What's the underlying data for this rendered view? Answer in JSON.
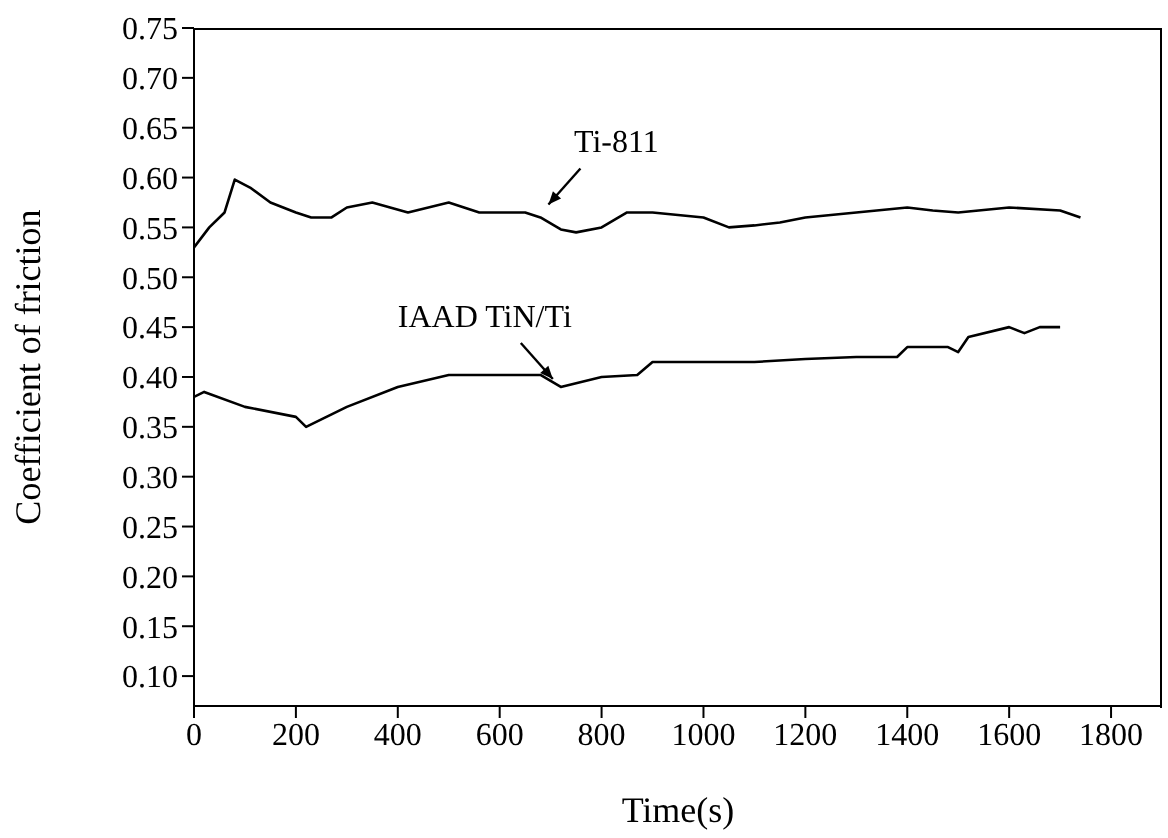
{
  "chart_data": {
    "type": "line",
    "xlabel": "Time(s)",
    "ylabel": "Coefficient of friction",
    "xlim": [
      0,
      1900
    ],
    "xticks": [
      0,
      200,
      400,
      600,
      800,
      1000,
      1200,
      1400,
      1600,
      1800
    ],
    "ylim": [
      0.07,
      0.75
    ],
    "yticks": [
      {
        "value": 0.1,
        "label": "0.10"
      },
      {
        "value": 0.15,
        "label": "0.15"
      },
      {
        "value": 0.2,
        "label": "0.20"
      },
      {
        "value": 0.25,
        "label": "0.25"
      },
      {
        "value": 0.3,
        "label": "0.30"
      },
      {
        "value": 0.35,
        "label": "0.35"
      },
      {
        "value": 0.4,
        "label": "0.40"
      },
      {
        "value": 0.45,
        "label": "0.45"
      },
      {
        "value": 0.5,
        "label": "0.50"
      },
      {
        "value": 0.55,
        "label": "0.55"
      },
      {
        "value": 0.6,
        "label": "0.60"
      },
      {
        "value": 0.65,
        "label": "0.65"
      },
      {
        "value": 0.7,
        "label": "0.70"
      },
      {
        "value": 0.75,
        "label": "0.75"
      }
    ],
    "marker": "none",
    "line_style": "solid",
    "series": [
      {
        "color": "#000000",
        "x": [
          0,
          30,
          60,
          80,
          110,
          150,
          200,
          230,
          270,
          300,
          350,
          420,
          500,
          560,
          600,
          650,
          680,
          720,
          750,
          800,
          850,
          900,
          1000,
          1050,
          1100,
          1150,
          1200,
          1300,
          1400,
          1450,
          1500,
          1600,
          1700,
          1740
        ],
        "values": [
          0.53,
          0.55,
          0.565,
          0.598,
          0.59,
          0.575,
          0.565,
          0.56,
          0.56,
          0.57,
          0.575,
          0.565,
          0.575,
          0.565,
          0.565,
          0.565,
          0.56,
          0.548,
          0.545,
          0.55,
          0.565,
          0.565,
          0.56,
          0.55,
          0.552,
          0.555,
          0.56,
          0.565,
          0.57,
          0.567,
          0.565,
          0.57,
          0.567,
          0.56
        ]
      },
      {
        "color": "#000000",
        "x": [
          0,
          20,
          100,
          200,
          220,
          300,
          400,
          500,
          600,
          680,
          720,
          800,
          870,
          900,
          1000,
          1100,
          1200,
          1300,
          1380,
          1400,
          1480,
          1500,
          1520,
          1600,
          1630,
          1660,
          1700
        ],
        "values": [
          0.38,
          0.385,
          0.37,
          0.36,
          0.35,
          0.37,
          0.39,
          0.402,
          0.402,
          0.402,
          0.39,
          0.4,
          0.402,
          0.415,
          0.415,
          0.415,
          0.418,
          0.42,
          0.42,
          0.43,
          0.43,
          0.425,
          0.44,
          0.45,
          0.444,
          0.45,
          0.45
        ]
      }
    ],
    "annotations": [
      {
        "text": "Ti-811",
        "x": 680,
        "y": 0.565
      },
      {
        "text": "IAAD TiN/Ti",
        "x": 720,
        "y": 0.39
      }
    ]
  }
}
